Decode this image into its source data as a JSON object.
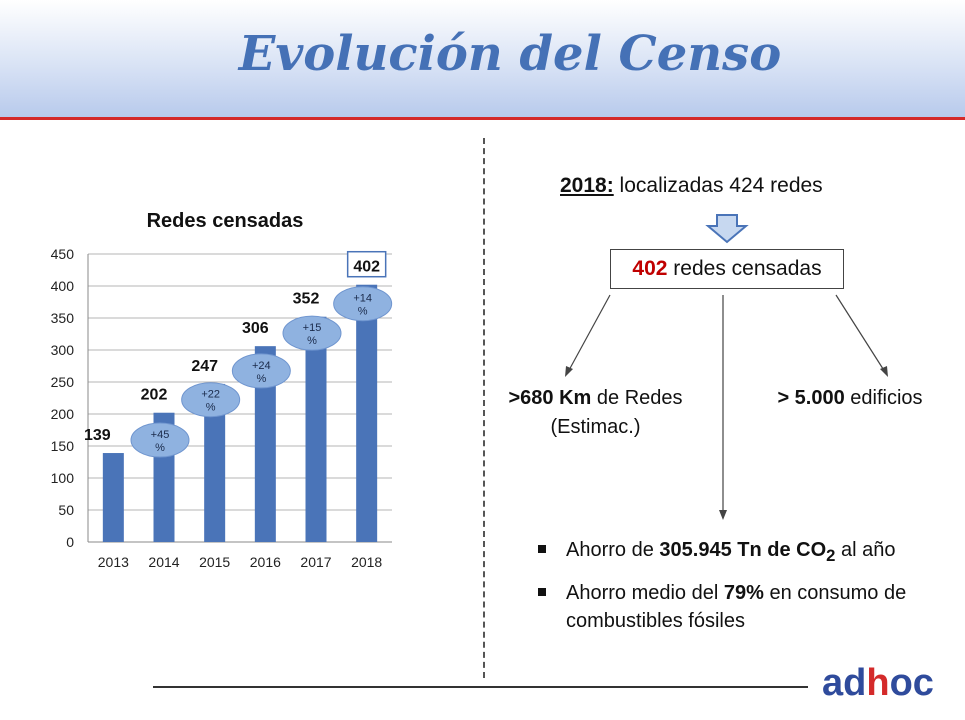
{
  "slide": {
    "title": "Evolución del Censo",
    "logo": {
      "a": "ad",
      "o": "h",
      "b": "oc"
    }
  },
  "right": {
    "headline_year": "2018:",
    "headline_rest": " localizadas 424 redes",
    "box_number": "402",
    "box_text": " redes censadas",
    "left_bold": ">680 Km",
    "left_rest": " de Redes (Estimac.)",
    "right_bold": "> 5.000",
    "right_rest": " edificios",
    "bullet1_pre": "Ahorro de ",
    "bullet1_bold": "305.945 Tn de CO",
    "bullet1_sub": "2",
    "bullet1_post": " al año",
    "bullet2_pre": "Ahorro medio del ",
    "bullet2_bold": "79%",
    "bullet2_post": " en consumo de combustibles fósiles"
  },
  "colors": {
    "bar": "#4a74b8",
    "ellipse": "#8fb2e0",
    "title": "#4571b6",
    "accent_red": "#c00000"
  },
  "chart_data": {
    "type": "bar",
    "title": "Redes censadas",
    "categories": [
      "2013",
      "2014",
      "2015",
      "2016",
      "2017",
      "2018"
    ],
    "values": [
      139,
      202,
      247,
      306,
      352,
      402
    ],
    "ylim": [
      0,
      450
    ],
    "yticks": [
      0,
      50,
      100,
      150,
      200,
      250,
      300,
      350,
      400,
      450
    ],
    "growth_labels": [
      {
        "year": "2014",
        "line1": "+45",
        "line2": "%"
      },
      {
        "year": "2015",
        "line1": "+22",
        "line2": "%"
      },
      {
        "year": "2016",
        "line1": "+24",
        "line2": "%"
      },
      {
        "year": "2017",
        "line1": "+15",
        "line2": "%"
      },
      {
        "year": "2018",
        "line1": "+14",
        "line2": "%"
      }
    ],
    "boxed_label_year": "2018",
    "grid": true
  }
}
